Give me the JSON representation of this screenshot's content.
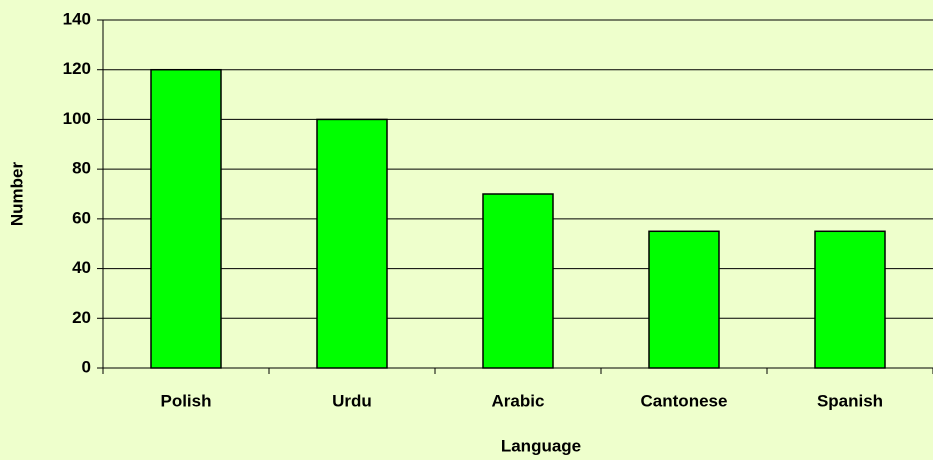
{
  "chart_data": {
    "type": "bar",
    "x_label": "Language",
    "y_label": "Number",
    "categories": [
      "Polish",
      "Urdu",
      "Arabic",
      "Cantonese",
      "Spanish"
    ],
    "values": [
      120,
      100,
      70,
      55,
      55
    ],
    "color": "#00ff00",
    "ylim": [
      0,
      140
    ],
    "yticks": [
      0,
      20,
      40,
      60,
      80,
      100,
      120,
      140
    ],
    "grid": true
  }
}
